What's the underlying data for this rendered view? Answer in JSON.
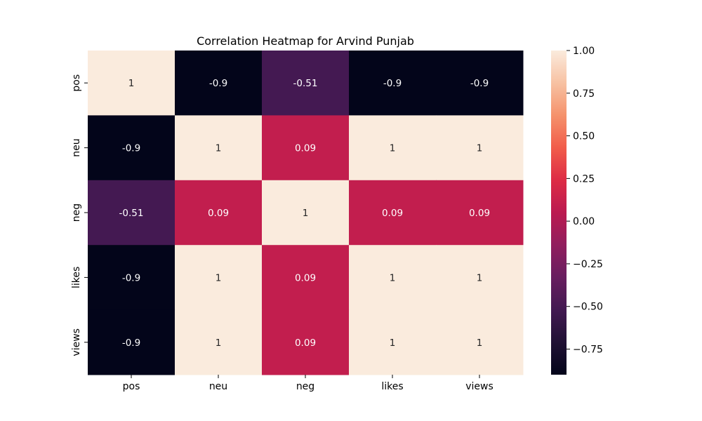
{
  "chart_data": {
    "type": "heatmap",
    "title": "Correlation Heatmap for Arvind Punjab",
    "x_labels": [
      "pos",
      "neu",
      "neg",
      "likes",
      "views"
    ],
    "y_labels": [
      "pos",
      "neu",
      "neg",
      "likes",
      "views"
    ],
    "values": [
      [
        1,
        -0.9,
        -0.51,
        -0.9,
        -0.9
      ],
      [
        -0.9,
        1,
        0.09,
        1,
        1
      ],
      [
        -0.51,
        0.09,
        1,
        0.09,
        0.09
      ],
      [
        -0.9,
        1,
        0.09,
        1,
        1
      ],
      [
        -0.9,
        1,
        0.09,
        1,
        1
      ]
    ],
    "annotations": [
      [
        "1",
        "-0.9",
        "-0.51",
        "-0.9",
        "-0.9"
      ],
      [
        "-0.9",
        "1",
        "0.09",
        "1",
        "1"
      ],
      [
        "-0.51",
        "0.09",
        "1",
        "0.09",
        "0.09"
      ],
      [
        "-0.9",
        "1",
        "0.09",
        "1",
        "1"
      ],
      [
        "-0.9",
        "1",
        "0.09",
        "1",
        "1"
      ]
    ],
    "colorbar": {
      "vmin": -0.9,
      "vmax": 1.0,
      "ticks": [
        1.0,
        0.75,
        0.5,
        0.25,
        0.0,
        -0.25,
        -0.5,
        -0.75
      ],
      "tick_labels": [
        "1.00",
        "0.75",
        "0.50",
        "0.25",
        "0.00",
        "−0.25",
        "−0.50",
        "−0.75"
      ],
      "colormap": "rocket"
    }
  }
}
